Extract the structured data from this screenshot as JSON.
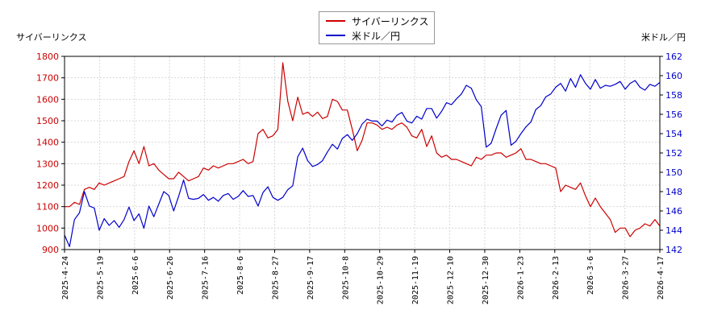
{
  "chart_data": {
    "type": "line",
    "left_axis_title": "サイバーリンクス",
    "right_axis_title": "米ドル／円",
    "legend": [
      {
        "label": "サイバーリンクス",
        "color": "#cc0000"
      },
      {
        "label": "米ドル／円",
        "color": "#0000cc"
      }
    ],
    "legend_position": "top-center",
    "grid": true,
    "x_ticks": [
      "2025-4-24",
      "2025-5-19",
      "2025-6-6",
      "2025-6-26",
      "2025-7-16",
      "2025-8-6",
      "2025-8-27",
      "2025-9-17",
      "2025-10-8",
      "2025-10-29",
      "2025-11-19",
      "2025-12-10",
      "2025-12-30",
      "2026-1-23",
      "2026-2-13",
      "2026-3-6",
      "2026-3-27",
      "2026-4-17"
    ],
    "y_left": {
      "min": 900,
      "max": 1800,
      "ticks": [
        900,
        1000,
        1100,
        1200,
        1300,
        1400,
        1500,
        1600,
        1700,
        1800
      ]
    },
    "y_right": {
      "min": 142,
      "max": 162,
      "ticks": [
        142,
        144,
        146,
        148,
        150,
        152,
        154,
        156,
        158,
        160,
        162
      ]
    },
    "series": [
      {
        "name": "サイバーリンクス",
        "axis": "left",
        "color": "#cc0000",
        "values": [
          1100,
          1100,
          1120,
          1110,
          1180,
          1190,
          1180,
          1210,
          1200,
          1210,
          1220,
          1230,
          1240,
          1310,
          1360,
          1300,
          1380,
          1290,
          1300,
          1270,
          1250,
          1230,
          1230,
          1260,
          1240,
          1220,
          1230,
          1240,
          1280,
          1270,
          1290,
          1280,
          1290,
          1300,
          1300,
          1310,
          1320,
          1300,
          1310,
          1440,
          1460,
          1420,
          1430,
          1460,
          1770,
          1590,
          1500,
          1610,
          1530,
          1540,
          1520,
          1540,
          1510,
          1520,
          1600,
          1590,
          1550,
          1550,
          1460,
          1360,
          1410,
          1490,
          1490,
          1480,
          1460,
          1470,
          1460,
          1480,
          1490,
          1470,
          1430,
          1420,
          1460,
          1380,
          1430,
          1350,
          1330,
          1340,
          1320,
          1320,
          1310,
          1300,
          1290,
          1330,
          1320,
          1340,
          1340,
          1350,
          1350,
          1330,
          1340,
          1350,
          1370,
          1320,
          1320,
          1310,
          1300,
          1300,
          1290,
          1280,
          1170,
          1200,
          1190,
          1180,
          1210,
          1150,
          1100,
          1140,
          1100,
          1070,
          1040,
          980,
          1000,
          1000,
          960,
          990,
          1000,
          1020,
          1010,
          1040,
          1010
        ]
      },
      {
        "name": "米ドル／円",
        "axis": "right",
        "color": "#0000cc",
        "values": [
          143.5,
          142.3,
          145.1,
          145.8,
          148.0,
          146.5,
          146.3,
          144.0,
          145.2,
          144.5,
          145.0,
          144.3,
          145.1,
          146.4,
          145.0,
          145.7,
          144.2,
          146.5,
          145.4,
          146.7,
          148.0,
          147.6,
          146.0,
          147.5,
          149.2,
          147.3,
          147.2,
          147.3,
          147.7,
          147.1,
          147.4,
          147.0,
          147.6,
          147.8,
          147.2,
          147.5,
          148.1,
          147.5,
          147.6,
          146.5,
          147.9,
          148.5,
          147.4,
          147.1,
          147.4,
          148.2,
          148.6,
          151.6,
          152.5,
          151.2,
          150.6,
          150.8,
          151.2,
          152.1,
          152.9,
          152.4,
          153.5,
          153.9,
          153.3,
          154.0,
          155.0,
          155.5,
          155.3,
          155.3,
          154.8,
          155.4,
          155.2,
          155.9,
          156.2,
          155.3,
          155.1,
          155.8,
          155.5,
          156.6,
          156.6,
          155.6,
          156.3,
          157.2,
          157.0,
          157.6,
          158.1,
          159.0,
          158.7,
          157.5,
          156.8,
          152.6,
          153.0,
          154.5,
          155.9,
          156.4,
          152.8,
          153.2,
          154.0,
          154.7,
          155.2,
          156.5,
          156.9,
          157.8,
          158.1,
          158.8,
          159.2,
          158.4,
          159.7,
          158.8,
          160.1,
          159.2,
          158.6,
          159.6,
          158.7,
          159.0,
          158.9,
          159.1,
          159.4,
          158.6,
          159.2,
          159.5,
          158.8,
          158.5,
          159.1,
          158.9,
          159.3
        ]
      }
    ]
  }
}
